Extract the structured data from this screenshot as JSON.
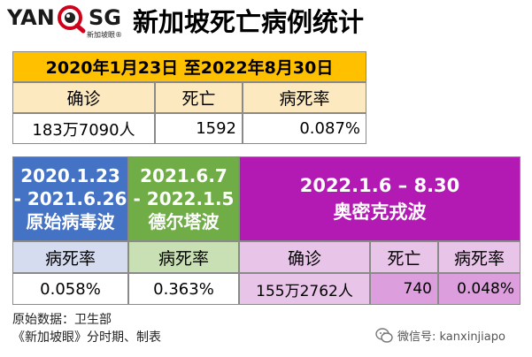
{
  "logo": {
    "left_text": "YAN",
    "right_text": "SG",
    "sub": "新加坡眼®"
  },
  "title": "新加坡死亡病例统计",
  "summary": {
    "date_range": "2020年1月23日 至2022年8月30日",
    "headers": [
      "确诊",
      "死亡",
      "病死率"
    ],
    "values": [
      "183万7090人",
      "1592",
      "0.087%"
    ]
  },
  "periods": [
    {
      "line1": "2020.1.23",
      "line2": "- 2021.6.26",
      "line3": "原始病毒波",
      "header": "病死率",
      "value": "0.058%"
    },
    {
      "line1": "2021.6.7",
      "line2": "- 2022.1.5",
      "line3": "德尔塔波",
      "header": "病死率",
      "value": "0.363%"
    },
    {
      "line1": "2022.1.6 – 8.30",
      "line2": "奥密克戎波",
      "headers": [
        "确诊",
        "死亡",
        "病死率"
      ],
      "values": [
        "155万2762人",
        "740",
        "0.048%"
      ]
    }
  ],
  "source": {
    "line1": "原始数据：卫生部",
    "line2": "《新加坡眼》分时期、制表"
  },
  "wechat": "微信号: kanxinjiapo",
  "colors": {
    "orange": "#ffc000",
    "blue": "#4472c4",
    "green": "#70ad47",
    "purple": "#b319b3"
  }
}
